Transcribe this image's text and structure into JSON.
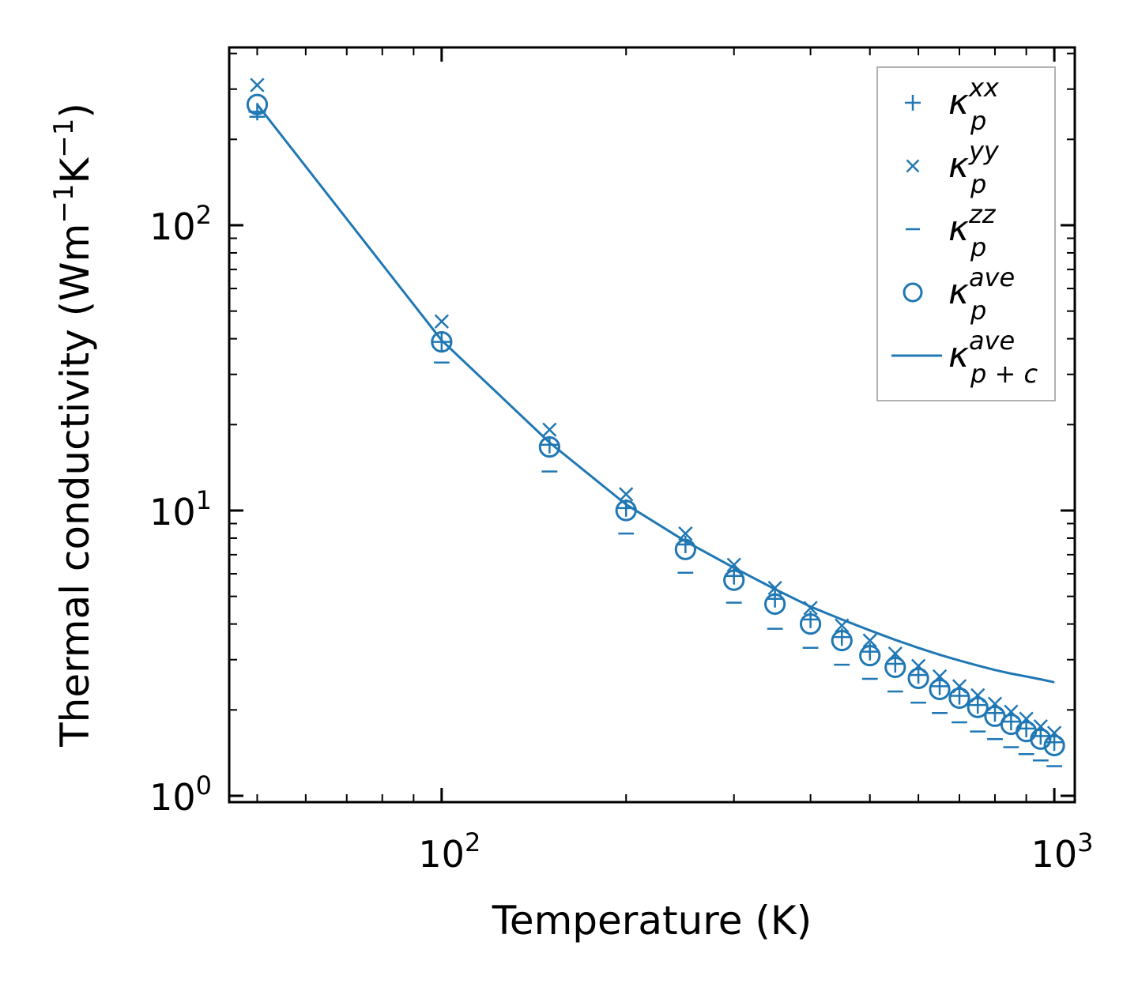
{
  "chart_data": {
    "type": "scatter",
    "xscale": "log",
    "yscale": "log",
    "xlabel": "Temperature (K)",
    "ylabel": {
      "text": "Thermal conductivity (Wm",
      "exp1": "−1",
      "mid": "K",
      "exp2": "−1",
      "close": ")"
    },
    "xlim": [
      45,
      1080
    ],
    "ylim": [
      0.95,
      420
    ],
    "xticks": [
      {
        "value": 100,
        "base": "10",
        "exp": "2"
      },
      {
        "value": 1000,
        "base": "10",
        "exp": "3"
      }
    ],
    "yticks": [
      {
        "value": 1,
        "base": "10",
        "exp": "0"
      },
      {
        "value": 10,
        "base": "10",
        "exp": "1"
      },
      {
        "value": 100,
        "base": "10",
        "exp": "2"
      }
    ],
    "color": "#1f77b4",
    "x": [
      50,
      100,
      150,
      200,
      250,
      300,
      350,
      400,
      450,
      500,
      550,
      600,
      650,
      700,
      750,
      800,
      850,
      900,
      950,
      1000
    ],
    "series": [
      {
        "name": "kxx",
        "label": {
          "base": "κ",
          "sup": "xx",
          "sub": "p"
        },
        "marker": "plus",
        "values": [
          250,
          39,
          17,
          10.2,
          7.6,
          5.9,
          4.9,
          4.15,
          3.6,
          3.2,
          2.9,
          2.65,
          2.42,
          2.24,
          2.08,
          1.95,
          1.82,
          1.72,
          1.62,
          1.54
        ]
      },
      {
        "name": "kyy",
        "label": {
          "base": "κ",
          "sup": "yy",
          "sub": "p"
        },
        "marker": "x",
        "values": [
          310,
          46,
          19.2,
          11.4,
          8.3,
          6.45,
          5.35,
          4.55,
          3.95,
          3.5,
          3.15,
          2.85,
          2.62,
          2.42,
          2.25,
          2.1,
          1.97,
          1.86,
          1.75,
          1.66
        ]
      },
      {
        "name": "kzz",
        "label": {
          "base": "κ",
          "sup": "zz",
          "sub": "p"
        },
        "marker": "hline",
        "values": [
          240,
          33,
          13.7,
          8.3,
          6.05,
          4.75,
          3.85,
          3.3,
          2.88,
          2.57,
          2.32,
          2.12,
          1.95,
          1.81,
          1.68,
          1.58,
          1.48,
          1.4,
          1.33,
          1.27
        ]
      },
      {
        "name": "kave",
        "label": {
          "base": "κ",
          "sup": "ave",
          "sub": "p"
        },
        "marker": "circle",
        "values": [
          265,
          39,
          16.7,
          10.0,
          7.3,
          5.7,
          4.7,
          4.0,
          3.5,
          3.1,
          2.82,
          2.58,
          2.36,
          2.2,
          2.04,
          1.9,
          1.78,
          1.68,
          1.58,
          1.5
        ]
      },
      {
        "name": "kpc",
        "label": {
          "base": "κ",
          "sup": "ave",
          "sub": "p + c"
        },
        "marker": "line",
        "values": [
          265,
          39.5,
          17.3,
          10.5,
          7.8,
          6.3,
          5.3,
          4.6,
          4.15,
          3.8,
          3.52,
          3.3,
          3.12,
          2.98,
          2.86,
          2.76,
          2.68,
          2.62,
          2.56,
          2.5
        ]
      }
    ],
    "legend_position": "upper right"
  }
}
